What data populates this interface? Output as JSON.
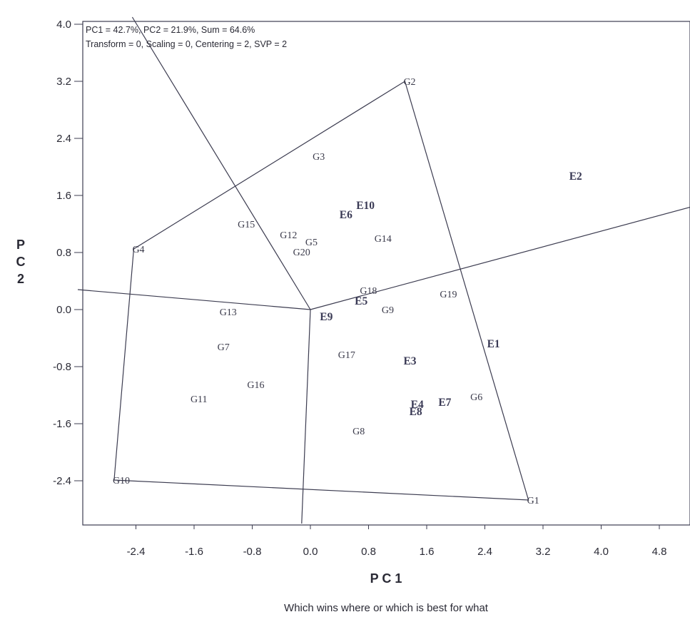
{
  "chart_data": {
    "type": "scatter",
    "header_line1": "PC1 = 42.7%, PC2 = 21.9%, Sum = 64.6%",
    "header_line2": "Transform = 0, Scaling = 0, Centering = 2, SVP = 2",
    "xlabel": "P C 1",
    "ylabel": "P\nC\n2",
    "footer": "Which wins where or which is best for what",
    "xlim": [
      -3.2,
      5.35
    ],
    "ylim": [
      -3.0,
      4.1
    ],
    "x_ticks": [
      "-2.4",
      "-1.6",
      "-0.8",
      "0.0",
      "0.8",
      "1.6",
      "2.4",
      "3.2",
      "4.0",
      "4.8"
    ],
    "x_tick_values": [
      -2.4,
      -1.6,
      -0.8,
      0.0,
      0.8,
      1.6,
      2.4,
      3.2,
      4.0,
      4.8
    ],
    "y_ticks": [
      "4.0",
      "3.2",
      "2.4",
      "1.6",
      "0.8",
      "0.0",
      "-0.8",
      "-1.6",
      "-2.4"
    ],
    "y_tick_values": [
      4.0,
      3.2,
      2.4,
      1.6,
      0.8,
      0.0,
      -0.8,
      -1.6,
      -2.4
    ],
    "genotypes": [
      {
        "label": "G1",
        "x": 3.0,
        "y": -2.67
      },
      {
        "label": "G2",
        "x": 1.3,
        "y": 3.2
      },
      {
        "label": "G3",
        "x": 0.05,
        "y": 2.15
      },
      {
        "label": "G4",
        "x": -2.43,
        "y": 0.85
      },
      {
        "label": "G5",
        "x": -0.05,
        "y": 0.95
      },
      {
        "label": "G6",
        "x": 2.22,
        "y": -1.22
      },
      {
        "label": "G7",
        "x": -1.26,
        "y": -0.52
      },
      {
        "label": "G8",
        "x": 0.6,
        "y": -1.7
      },
      {
        "label": "G9",
        "x": 1.0,
        "y": 0.0
      },
      {
        "label": "G10",
        "x": -2.7,
        "y": -2.39
      },
      {
        "label": "G11",
        "x": -1.63,
        "y": -1.25
      },
      {
        "label": "G12",
        "x": -0.4,
        "y": 1.05
      },
      {
        "label": "G13",
        "x": -1.23,
        "y": -0.03
      },
      {
        "label": "G14",
        "x": 0.9,
        "y": 1.0
      },
      {
        "label": "G15",
        "x": -0.98,
        "y": 1.2
      },
      {
        "label": "G16",
        "x": -0.85,
        "y": -1.05
      },
      {
        "label": "G17",
        "x": 0.4,
        "y": -0.63
      },
      {
        "label": "G18",
        "x": 0.7,
        "y": 0.27
      },
      {
        "label": "G19",
        "x": 1.8,
        "y": 0.22
      },
      {
        "label": "G20",
        "x": -0.22,
        "y": 0.81
      }
    ],
    "environments": [
      {
        "label": "E1",
        "x": 2.45,
        "y": -0.48
      },
      {
        "label": "E2",
        "x": 3.58,
        "y": 1.87
      },
      {
        "label": "E3",
        "x": 1.3,
        "y": -0.72
      },
      {
        "label": "E4",
        "x": 1.4,
        "y": -1.33
      },
      {
        "label": "E5",
        "x": 0.63,
        "y": 0.12
      },
      {
        "label": "E6",
        "x": 0.42,
        "y": 1.33
      },
      {
        "label": "E7",
        "x": 1.78,
        "y": -1.3
      },
      {
        "label": "E8",
        "x": 1.38,
        "y": -1.43
      },
      {
        "label": "E9",
        "x": 0.15,
        "y": -0.1
      },
      {
        "label": "E10",
        "x": 0.65,
        "y": 1.46
      }
    ],
    "polygon_vertices": [
      "G2",
      "G1",
      "G10",
      "G4"
    ],
    "polygon": [
      [
        1.3,
        3.2
      ],
      [
        3.0,
        -2.67
      ],
      [
        -2.7,
        -2.39
      ],
      [
        -2.43,
        0.85
      ]
    ],
    "origin": [
      0.0,
      0.0
    ],
    "rays_to": [
      [
        -2.45,
        4.1
      ],
      [
        5.35,
        1.47
      ],
      [
        -3.2,
        0.28
      ],
      [
        -0.12,
        -3.0
      ]
    ]
  }
}
